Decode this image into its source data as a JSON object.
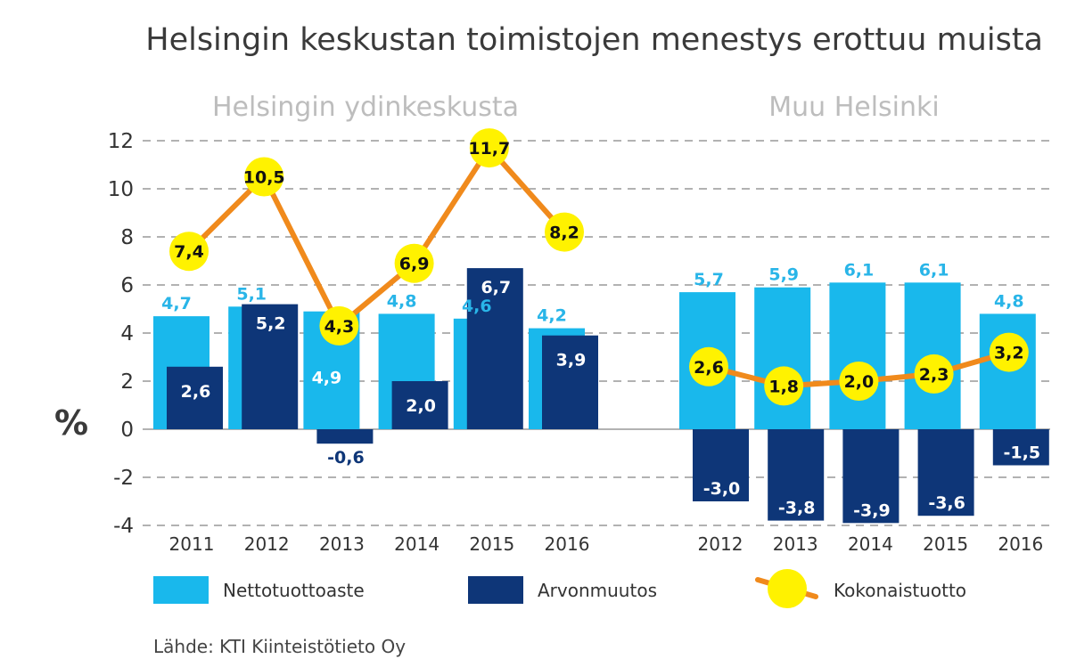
{
  "title": "Helsingin keskustan toimistojen menestys erottuu muista",
  "source": "Lähde: KTI Kiinteistötieto Oy",
  "colors": {
    "net": "#19b8ec",
    "value": "#0e3678",
    "total_line": "#f08a1c",
    "total_marker": "#fff200",
    "grid": "#999999"
  },
  "legend": {
    "net": "Nettotuottoaste",
    "value": "Arvonmuutos",
    "total": "Kokonaistuotto"
  },
  "chart_data": [
    {
      "type": "bar",
      "title": "Helsingin ydinkeskusta",
      "ylabel": "%",
      "ylim": [
        -4,
        12
      ],
      "yticks": [
        "12",
        "10",
        "8",
        "6",
        "4",
        "2",
        "0",
        "-2",
        "-4"
      ],
      "grid": true,
      "categories": [
        "2011",
        "2012",
        "2013",
        "2014",
        "2015",
        "2016"
      ],
      "series": [
        {
          "name": "Nettotuottoaste",
          "values": [
            4.7,
            5.1,
            4.9,
            4.8,
            4.6,
            4.2
          ],
          "labels": [
            "4,7",
            "5,1",
            "4,9",
            "4,8",
            "4,6",
            "4,2"
          ]
        },
        {
          "name": "Arvonmuutos",
          "values": [
            2.6,
            5.2,
            -0.6,
            2.0,
            6.7,
            3.9
          ],
          "labels": [
            "2,6",
            "5,2",
            "-0,6",
            "2,0",
            "6,7",
            "3,9"
          ]
        },
        {
          "name": "Kokonaistuotto",
          "values": [
            7.4,
            10.5,
            4.3,
            6.9,
            11.7,
            8.2
          ],
          "labels": [
            "7,4",
            "10,5",
            "4,3",
            "6,9",
            "11,7",
            "8,2"
          ]
        }
      ]
    },
    {
      "type": "bar",
      "title": "Muu Helsinki",
      "ylim": [
        -4,
        12
      ],
      "grid": true,
      "categories": [
        "2012",
        "2013",
        "2014",
        "2015",
        "2016"
      ],
      "series": [
        {
          "name": "Nettotuottoaste",
          "values": [
            5.7,
            5.9,
            6.1,
            6.1,
            4.8
          ],
          "labels": [
            "5,7",
            "5,9",
            "6,1",
            "6,1",
            "4,8"
          ]
        },
        {
          "name": "Arvonmuutos",
          "values": [
            -3.0,
            -3.8,
            -3.9,
            -3.6,
            -1.5
          ],
          "labels": [
            "-3,0",
            "-3,8",
            "-3,9",
            "-3,6",
            "-1,5"
          ]
        },
        {
          "name": "Kokonaistuotto",
          "values": [
            2.6,
            1.8,
            2.0,
            2.3,
            3.2
          ],
          "labels": [
            "2,6",
            "1,8",
            "2,0",
            "2,3",
            "3,2"
          ]
        }
      ]
    }
  ]
}
